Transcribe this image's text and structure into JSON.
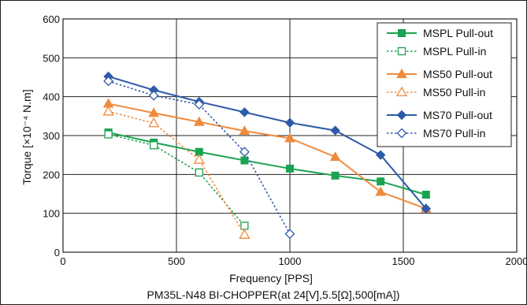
{
  "chart_data": {
    "type": "line",
    "title": "",
    "xlabel": "Frequency [PPS]",
    "ylabel": "Torque [×10⁻⁴ N.m]",
    "caption": "PM35L-N48 BI-CHOPPER(at 24[V],5.5[Ω],500[mA])",
    "xlim": [
      0,
      2000
    ],
    "ylim": [
      0,
      600
    ],
    "x_ticks": [
      "0",
      "500",
      "1000",
      "1500",
      "2000"
    ],
    "y_ticks": [
      "0",
      "100",
      "200",
      "300",
      "400",
      "500",
      "600"
    ],
    "grid": true,
    "legend_position": "top-right",
    "series": [
      {
        "name": "MSPL Pull-out",
        "color": "#1aa350",
        "style": "solid",
        "marker": "square-filled",
        "x": [
          200,
          400,
          600,
          800,
          1000,
          1200,
          1400,
          1600
        ],
        "y": [
          308,
          282,
          258,
          236,
          215,
          197,
          182,
          148
        ]
      },
      {
        "name": "MSPL Pull-in",
        "color": "#1aa350",
        "style": "dotted",
        "marker": "square-open",
        "x": [
          200,
          400,
          600,
          800
        ],
        "y": [
          303,
          275,
          205,
          68
        ]
      },
      {
        "name": "MS50  Pull-out",
        "color": "#f08a3c",
        "style": "solid",
        "marker": "triangle-filled",
        "x": [
          200,
          400,
          600,
          800,
          1000,
          1200,
          1400,
          1600
        ],
        "y": [
          382,
          358,
          335,
          312,
          293,
          245,
          155,
          112
        ]
      },
      {
        "name": "MS50  Pull-in",
        "color": "#f08a3c",
        "style": "dotted",
        "marker": "triangle-open",
        "x": [
          200,
          400,
          600,
          800
        ],
        "y": [
          362,
          332,
          238,
          45
        ]
      },
      {
        "name": "MS70  Pull-out",
        "color": "#2e5aa8",
        "style": "solid",
        "marker": "diamond-filled",
        "x": [
          200,
          400,
          600,
          800,
          1000,
          1200,
          1400,
          1600
        ],
        "y": [
          452,
          417,
          387,
          360,
          333,
          313,
          250,
          112
        ]
      },
      {
        "name": "MS70  Pull-in",
        "color": "#2e5aa8",
        "style": "dotted",
        "marker": "diamond-open",
        "x": [
          200,
          400,
          600,
          800,
          1000
        ],
        "y": [
          440,
          403,
          380,
          258,
          47
        ]
      }
    ]
  }
}
